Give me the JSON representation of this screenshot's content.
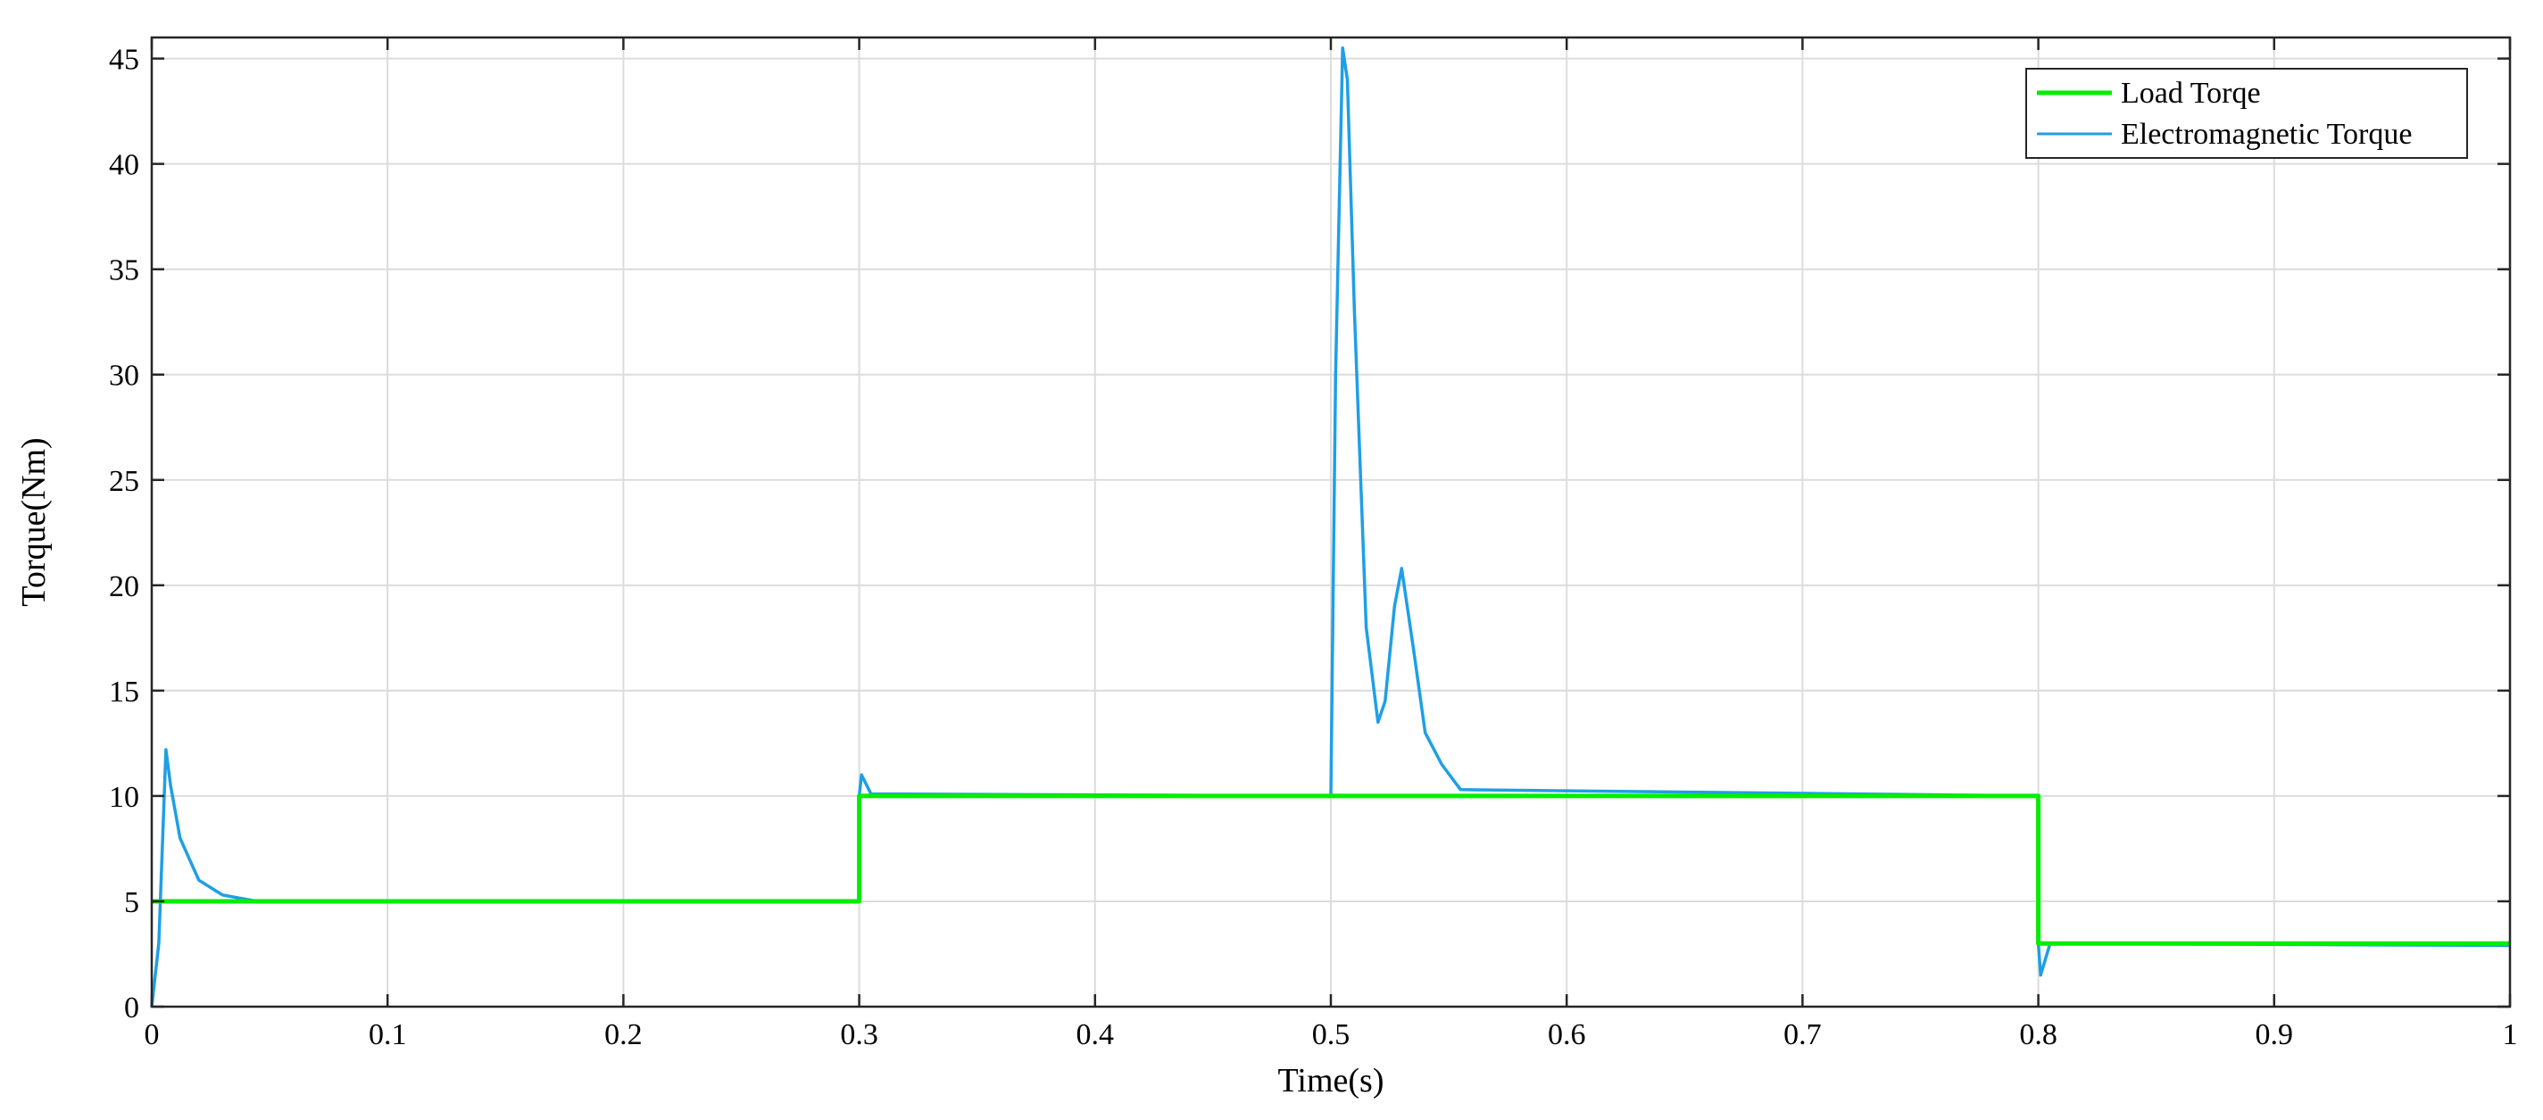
{
  "chart_data": {
    "type": "line",
    "title": "",
    "xlabel": "Time(s)",
    "ylabel": "Torque(Nm)",
    "xlim": [
      0,
      1
    ],
    "ylim": [
      0,
      46
    ],
    "xticks": [
      0,
      0.1,
      0.2,
      0.3,
      0.4,
      0.5,
      0.6,
      0.7,
      0.8,
      0.9,
      1
    ],
    "xtick_labels": [
      "0",
      "0.1",
      "0.2",
      "0.3",
      "0.4",
      "0.5",
      "0.6",
      "0.7",
      "0.8",
      "0.9",
      "1"
    ],
    "yticks": [
      0,
      5,
      10,
      15,
      20,
      25,
      30,
      35,
      40,
      45
    ],
    "ytick_labels": [
      "0",
      "5",
      "10",
      "15",
      "20",
      "25",
      "30",
      "35",
      "40",
      "45"
    ],
    "grid": true,
    "legend_position": "top-right",
    "series": [
      {
        "name": "Load Torqe",
        "color": "#00ee00",
        "x": [
          0,
          0.3,
          0.3,
          0.8,
          0.8,
          1.0
        ],
        "y": [
          5,
          5,
          10,
          10,
          3,
          3
        ]
      },
      {
        "name": "Electromagnetic Torque",
        "color": "#1e9fe6",
        "x": [
          0,
          0.003,
          0.006,
          0.008,
          0.012,
          0.02,
          0.03,
          0.045,
          0.3,
          0.3,
          0.301,
          0.305,
          0.5,
          0.502,
          0.505,
          0.507,
          0.51,
          0.515,
          0.52,
          0.523,
          0.527,
          0.53,
          0.535,
          0.54,
          0.547,
          0.555,
          0.8,
          0.8,
          0.801,
          0.805,
          1.0
        ],
        "y": [
          0,
          3,
          12.2,
          10.5,
          8.0,
          6.0,
          5.3,
          5.0,
          5.0,
          10.0,
          11.0,
          10.1,
          10.0,
          30,
          45.5,
          44,
          33,
          18,
          13.5,
          14.5,
          19,
          20.8,
          17,
          13,
          11.5,
          10.3,
          10.0,
          3,
          1.5,
          3.0,
          2.9
        ]
      }
    ]
  }
}
